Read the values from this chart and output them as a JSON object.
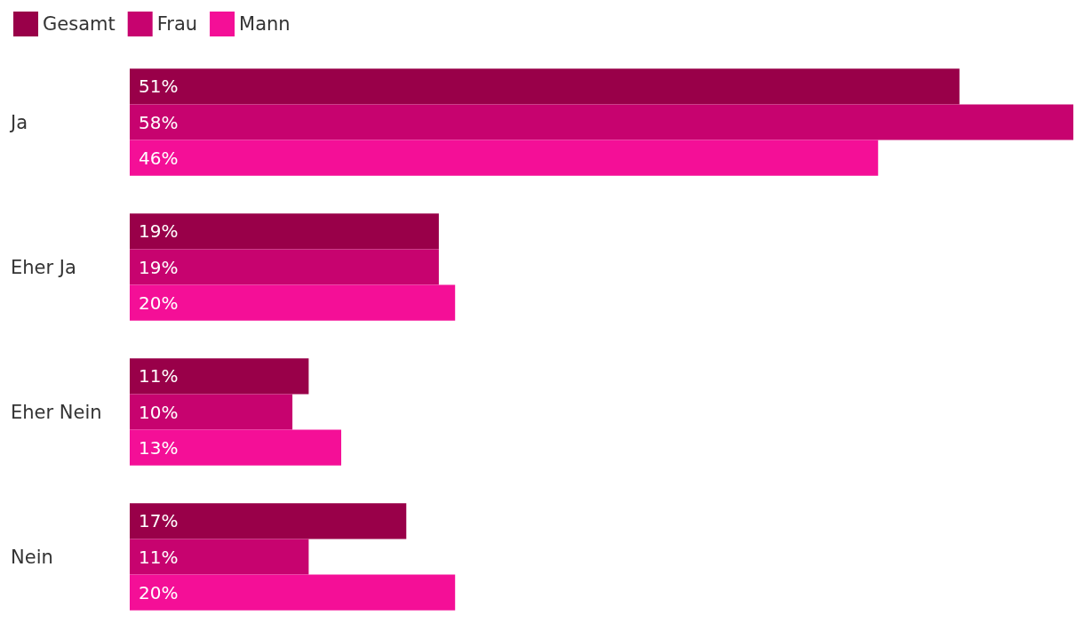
{
  "chart_data": {
    "type": "bar",
    "orientation": "horizontal",
    "categories": [
      "Ja",
      "Eher Ja",
      "Eher Nein",
      "Nein"
    ],
    "series": [
      {
        "name": "Gesamt",
        "color": "#990049",
        "values": [
          51,
          19,
          11,
          17
        ],
        "value_labels": [
          "51%",
          "19%",
          "11%",
          "17%"
        ]
      },
      {
        "name": "Frau",
        "color": "#c7036f",
        "values": [
          58,
          19,
          10,
          11
        ],
        "value_labels": [
          "58%",
          "19%",
          "10%",
          "11%"
        ]
      },
      {
        "name": "Mann",
        "color": "#f40f97",
        "values": [
          46,
          20,
          13,
          20
        ],
        "value_labels": [
          "46%",
          "20%",
          "13%",
          "20%"
        ]
      }
    ],
    "legend": "top left",
    "grid": false
  }
}
